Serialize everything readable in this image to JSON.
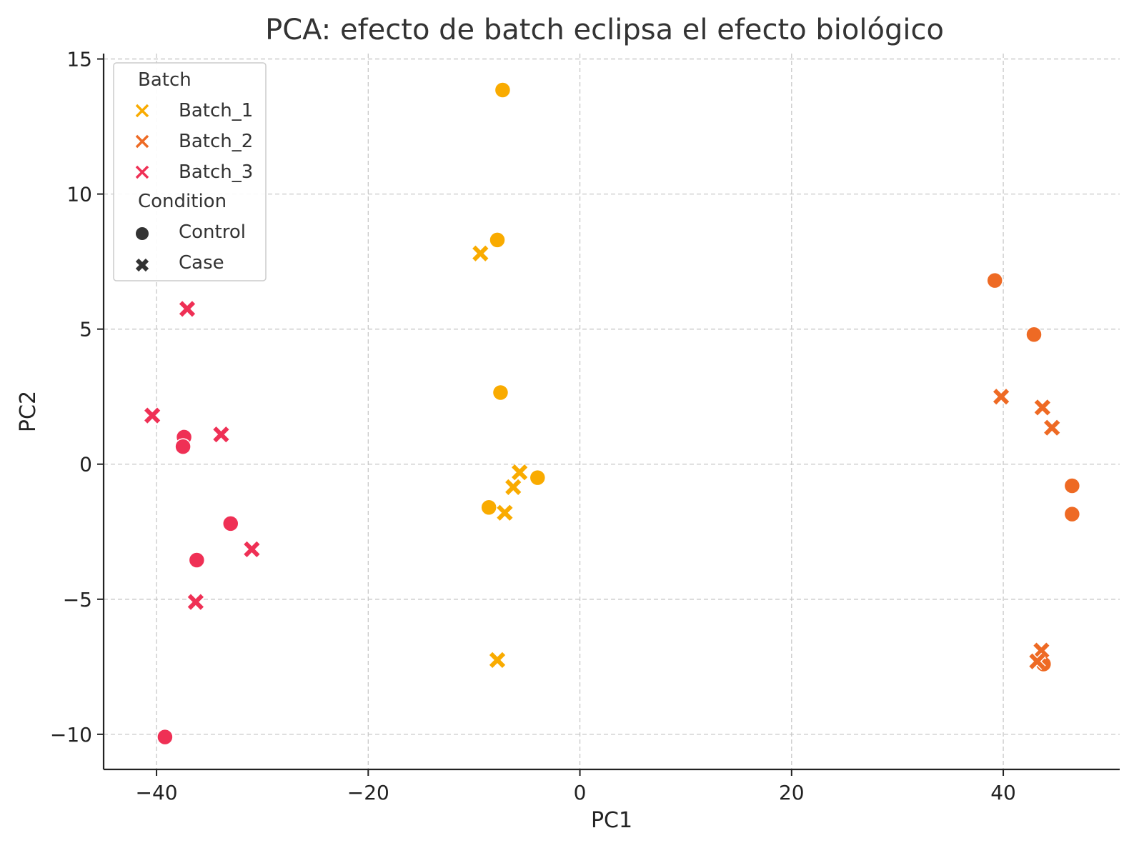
{
  "chart_data": {
    "type": "scatter",
    "title": "PCA: efecto de batch eclipsa el efecto biológico",
    "xlabel": "PC1",
    "ylabel": "PC2",
    "xlim": [
      -45,
      51
    ],
    "ylim": [
      -11.3,
      15.2
    ],
    "xticks": [
      -40,
      -20,
      0,
      20,
      40
    ],
    "yticks": [
      -10,
      -5,
      0,
      5,
      10,
      15
    ],
    "grid": true,
    "legend": {
      "placement": "top-left",
      "batch_title": "Batch",
      "condition_title": "Condition",
      "batches": [
        "Batch_1",
        "Batch_2",
        "Batch_3"
      ],
      "conditions": [
        "Control",
        "Case"
      ]
    },
    "colors": {
      "Batch_1": "#f9ab00",
      "Batch_2": "#ee6a24",
      "Batch_3": "#ef3055"
    },
    "marker_color": "#333333",
    "points": [
      {
        "batch": "Batch_1",
        "condition": "Control",
        "x": -7.3,
        "y": 13.85
      },
      {
        "batch": "Batch_1",
        "condition": "Control",
        "x": -7.8,
        "y": 8.3
      },
      {
        "batch": "Batch_1",
        "condition": "Control",
        "x": -7.5,
        "y": 2.65
      },
      {
        "batch": "Batch_1",
        "condition": "Control",
        "x": -4.0,
        "y": -0.5
      },
      {
        "batch": "Batch_1",
        "condition": "Control",
        "x": -8.6,
        "y": -1.6
      },
      {
        "batch": "Batch_1",
        "condition": "Case",
        "x": -9.4,
        "y": 7.8
      },
      {
        "batch": "Batch_1",
        "condition": "Case",
        "x": -5.7,
        "y": -0.3
      },
      {
        "batch": "Batch_1",
        "condition": "Case",
        "x": -6.3,
        "y": -0.85
      },
      {
        "batch": "Batch_1",
        "condition": "Case",
        "x": -7.1,
        "y": -1.8
      },
      {
        "batch": "Batch_1",
        "condition": "Case",
        "x": -7.8,
        "y": -7.25
      },
      {
        "batch": "Batch_2",
        "condition": "Control",
        "x": 39.2,
        "y": 6.8
      },
      {
        "batch": "Batch_2",
        "condition": "Control",
        "x": 42.9,
        "y": 4.8
      },
      {
        "batch": "Batch_2",
        "condition": "Control",
        "x": 46.5,
        "y": -0.8
      },
      {
        "batch": "Batch_2",
        "condition": "Control",
        "x": 46.5,
        "y": -1.85
      },
      {
        "batch": "Batch_2",
        "condition": "Control",
        "x": 43.8,
        "y": -7.4
      },
      {
        "batch": "Batch_2",
        "condition": "Case",
        "x": 39.8,
        "y": 2.5
      },
      {
        "batch": "Batch_2",
        "condition": "Case",
        "x": 43.7,
        "y": 2.1
      },
      {
        "batch": "Batch_2",
        "condition": "Case",
        "x": 44.6,
        "y": 1.35
      },
      {
        "batch": "Batch_2",
        "condition": "Case",
        "x": 43.6,
        "y": -6.9
      },
      {
        "batch": "Batch_2",
        "condition": "Case",
        "x": 43.2,
        "y": -7.3
      },
      {
        "batch": "Batch_3",
        "condition": "Control",
        "x": -37.4,
        "y": 1.0
      },
      {
        "batch": "Batch_3",
        "condition": "Control",
        "x": -37.5,
        "y": 0.65
      },
      {
        "batch": "Batch_3",
        "condition": "Control",
        "x": -33.0,
        "y": -2.2
      },
      {
        "batch": "Batch_3",
        "condition": "Control",
        "x": -36.2,
        "y": -3.55
      },
      {
        "batch": "Batch_3",
        "condition": "Control",
        "x": -39.2,
        "y": -10.1
      },
      {
        "batch": "Batch_3",
        "condition": "Case",
        "x": -37.1,
        "y": 5.75
      },
      {
        "batch": "Batch_3",
        "condition": "Case",
        "x": -40.4,
        "y": 1.8
      },
      {
        "batch": "Batch_3",
        "condition": "Case",
        "x": -33.9,
        "y": 1.1
      },
      {
        "batch": "Batch_3",
        "condition": "Case",
        "x": -31.0,
        "y": -3.15
      },
      {
        "batch": "Batch_3",
        "condition": "Case",
        "x": -36.3,
        "y": -5.1
      }
    ]
  }
}
